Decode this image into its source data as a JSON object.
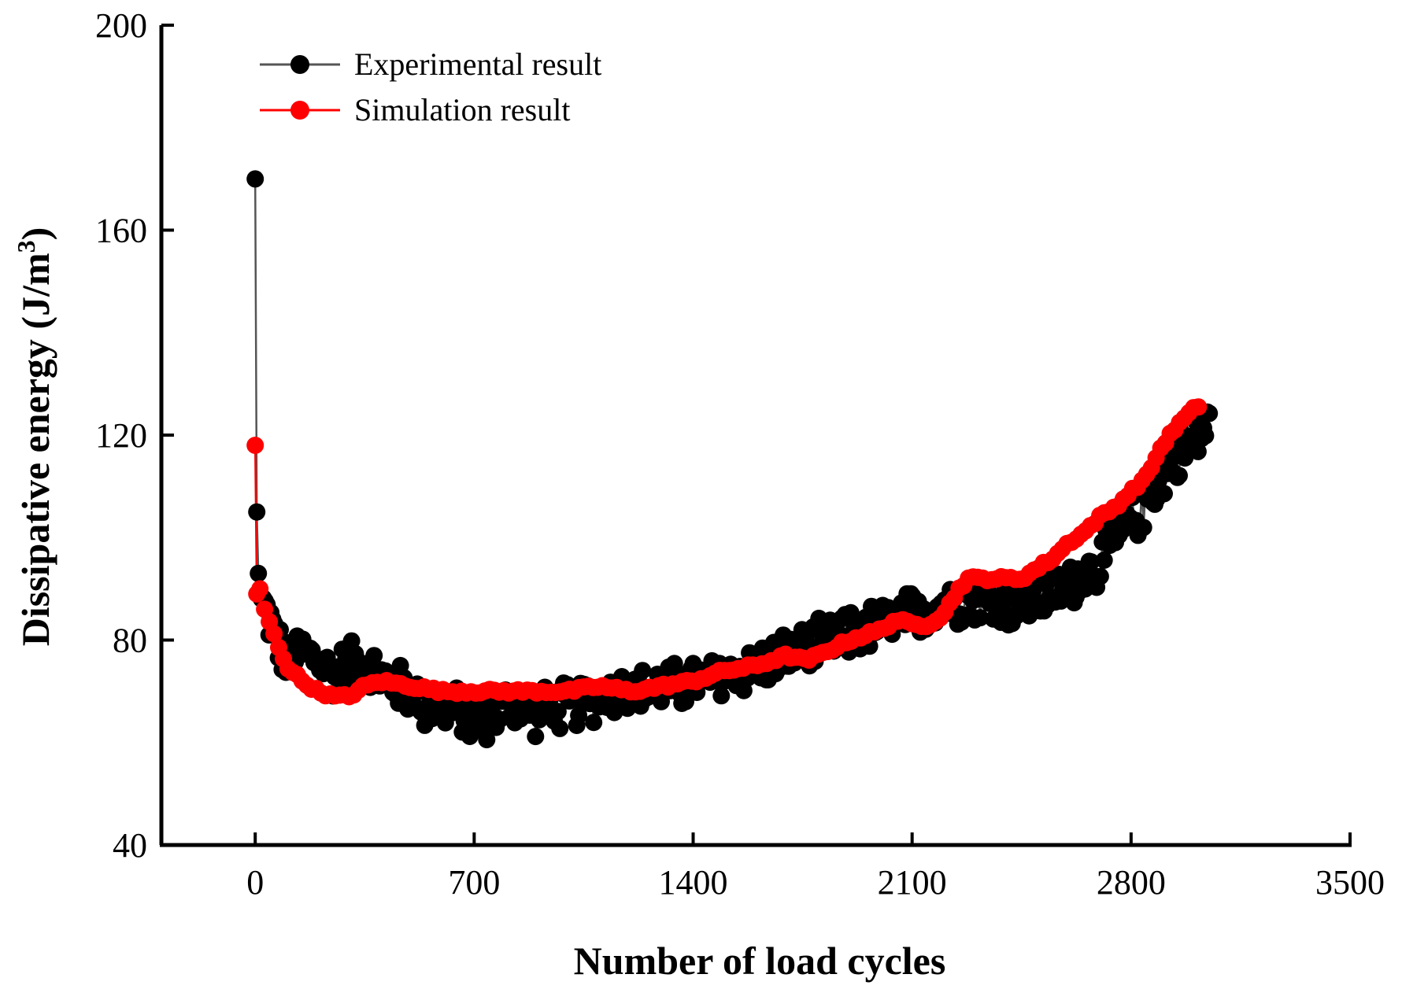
{
  "chart_data": {
    "type": "scatter",
    "title": "",
    "xlabel": "Number of load cycles",
    "ylabel_main": "Dissipative energy (J/m",
    "ylabel_sup": "3",
    "ylabel_close": ")",
    "xlim": [
      -300,
      3500
    ],
    "ylim": [
      40,
      200
    ],
    "xticks": [
      0,
      700,
      1400,
      2100,
      2800,
      3500
    ],
    "yticks": [
      40,
      80,
      120,
      160,
      200
    ],
    "xtick_labels": [
      "0",
      "700",
      "1400",
      "2100",
      "2800",
      "3500"
    ],
    "ytick_labels": [
      "40",
      "80",
      "120",
      "160",
      "200"
    ],
    "legend_position": "top-left",
    "series": [
      {
        "name": "Experimental result",
        "color": "#000000",
        "line_color": "#555555",
        "anchors": [
          [
            0,
            170
          ],
          [
            5,
            105
          ],
          [
            10,
            93
          ],
          [
            20,
            88
          ],
          [
            40,
            85
          ],
          [
            70,
            80
          ],
          [
            100,
            75
          ],
          [
            150,
            78
          ],
          [
            200,
            76
          ],
          [
            250,
            73
          ],
          [
            300,
            76
          ],
          [
            350,
            75
          ],
          [
            400,
            73
          ],
          [
            450,
            71
          ],
          [
            500,
            70
          ],
          [
            550,
            67
          ],
          [
            600,
            67
          ],
          [
            650,
            66
          ],
          [
            700,
            64
          ],
          [
            750,
            65
          ],
          [
            800,
            67
          ],
          [
            850,
            67
          ],
          [
            900,
            66
          ],
          [
            950,
            67
          ],
          [
            1000,
            67
          ],
          [
            1050,
            68
          ],
          [
            1100,
            69
          ],
          [
            1150,
            70
          ],
          [
            1200,
            70
          ],
          [
            1250,
            70
          ],
          [
            1300,
            71
          ],
          [
            1350,
            71
          ],
          [
            1400,
            72
          ],
          [
            1450,
            72
          ],
          [
            1500,
            73
          ],
          [
            1550,
            74
          ],
          [
            1600,
            75
          ],
          [
            1650,
            76
          ],
          [
            1700,
            77
          ],
          [
            1750,
            78
          ],
          [
            1800,
            79
          ],
          [
            1850,
            80
          ],
          [
            1900,
            81
          ],
          [
            1950,
            82
          ],
          [
            2000,
            83
          ],
          [
            2050,
            84
          ],
          [
            2100,
            85
          ],
          [
            2150,
            86
          ],
          [
            2200,
            87
          ],
          [
            2250,
            88
          ],
          [
            2300,
            88
          ],
          [
            2350,
            87
          ],
          [
            2400,
            87
          ],
          [
            2450,
            87
          ],
          [
            2500,
            88
          ],
          [
            2550,
            89
          ],
          [
            2600,
            91
          ],
          [
            2650,
            93
          ],
          [
            2700,
            95
          ],
          [
            2750,
            99
          ],
          [
            2800,
            103
          ],
          [
            2850,
            107
          ],
          [
            2900,
            112
          ],
          [
            2950,
            116
          ],
          [
            3000,
            119
          ],
          [
            3050,
            122
          ]
        ],
        "noise": 4.5
      },
      {
        "name": "Simulation result",
        "color": "#ff0000",
        "line_color": "#ff0000",
        "anchors": [
          [
            0,
            118
          ],
          [
            5,
            89
          ],
          [
            15,
            90
          ],
          [
            30,
            86
          ],
          [
            60,
            81
          ],
          [
            100,
            75
          ],
          [
            150,
            72
          ],
          [
            200,
            70
          ],
          [
            250,
            69
          ],
          [
            300,
            69
          ],
          [
            350,
            71
          ],
          [
            400,
            72
          ],
          [
            500,
            71
          ],
          [
            600,
            70
          ],
          [
            700,
            70
          ],
          [
            800,
            70
          ],
          [
            900,
            70
          ],
          [
            1000,
            70
          ],
          [
            1100,
            71
          ],
          [
            1200,
            70
          ],
          [
            1300,
            71
          ],
          [
            1400,
            72
          ],
          [
            1500,
            74
          ],
          [
            1600,
            75
          ],
          [
            1700,
            77
          ],
          [
            1760,
            76
          ],
          [
            1800,
            77
          ],
          [
            1900,
            80
          ],
          [
            2000,
            82
          ],
          [
            2050,
            84
          ],
          [
            2100,
            83
          ],
          [
            2150,
            83
          ],
          [
            2200,
            85
          ],
          [
            2250,
            90
          ],
          [
            2280,
            92
          ],
          [
            2320,
            92
          ],
          [
            2400,
            92
          ],
          [
            2450,
            92
          ],
          [
            2500,
            94
          ],
          [
            2550,
            96
          ],
          [
            2600,
            99
          ],
          [
            2650,
            101
          ],
          [
            2700,
            104
          ],
          [
            2750,
            106
          ],
          [
            2800,
            109
          ],
          [
            2850,
            112
          ],
          [
            2900,
            118
          ],
          [
            2950,
            122
          ],
          [
            3000,
            125
          ],
          [
            3020,
            126
          ]
        ],
        "noise": 0.4
      }
    ]
  }
}
